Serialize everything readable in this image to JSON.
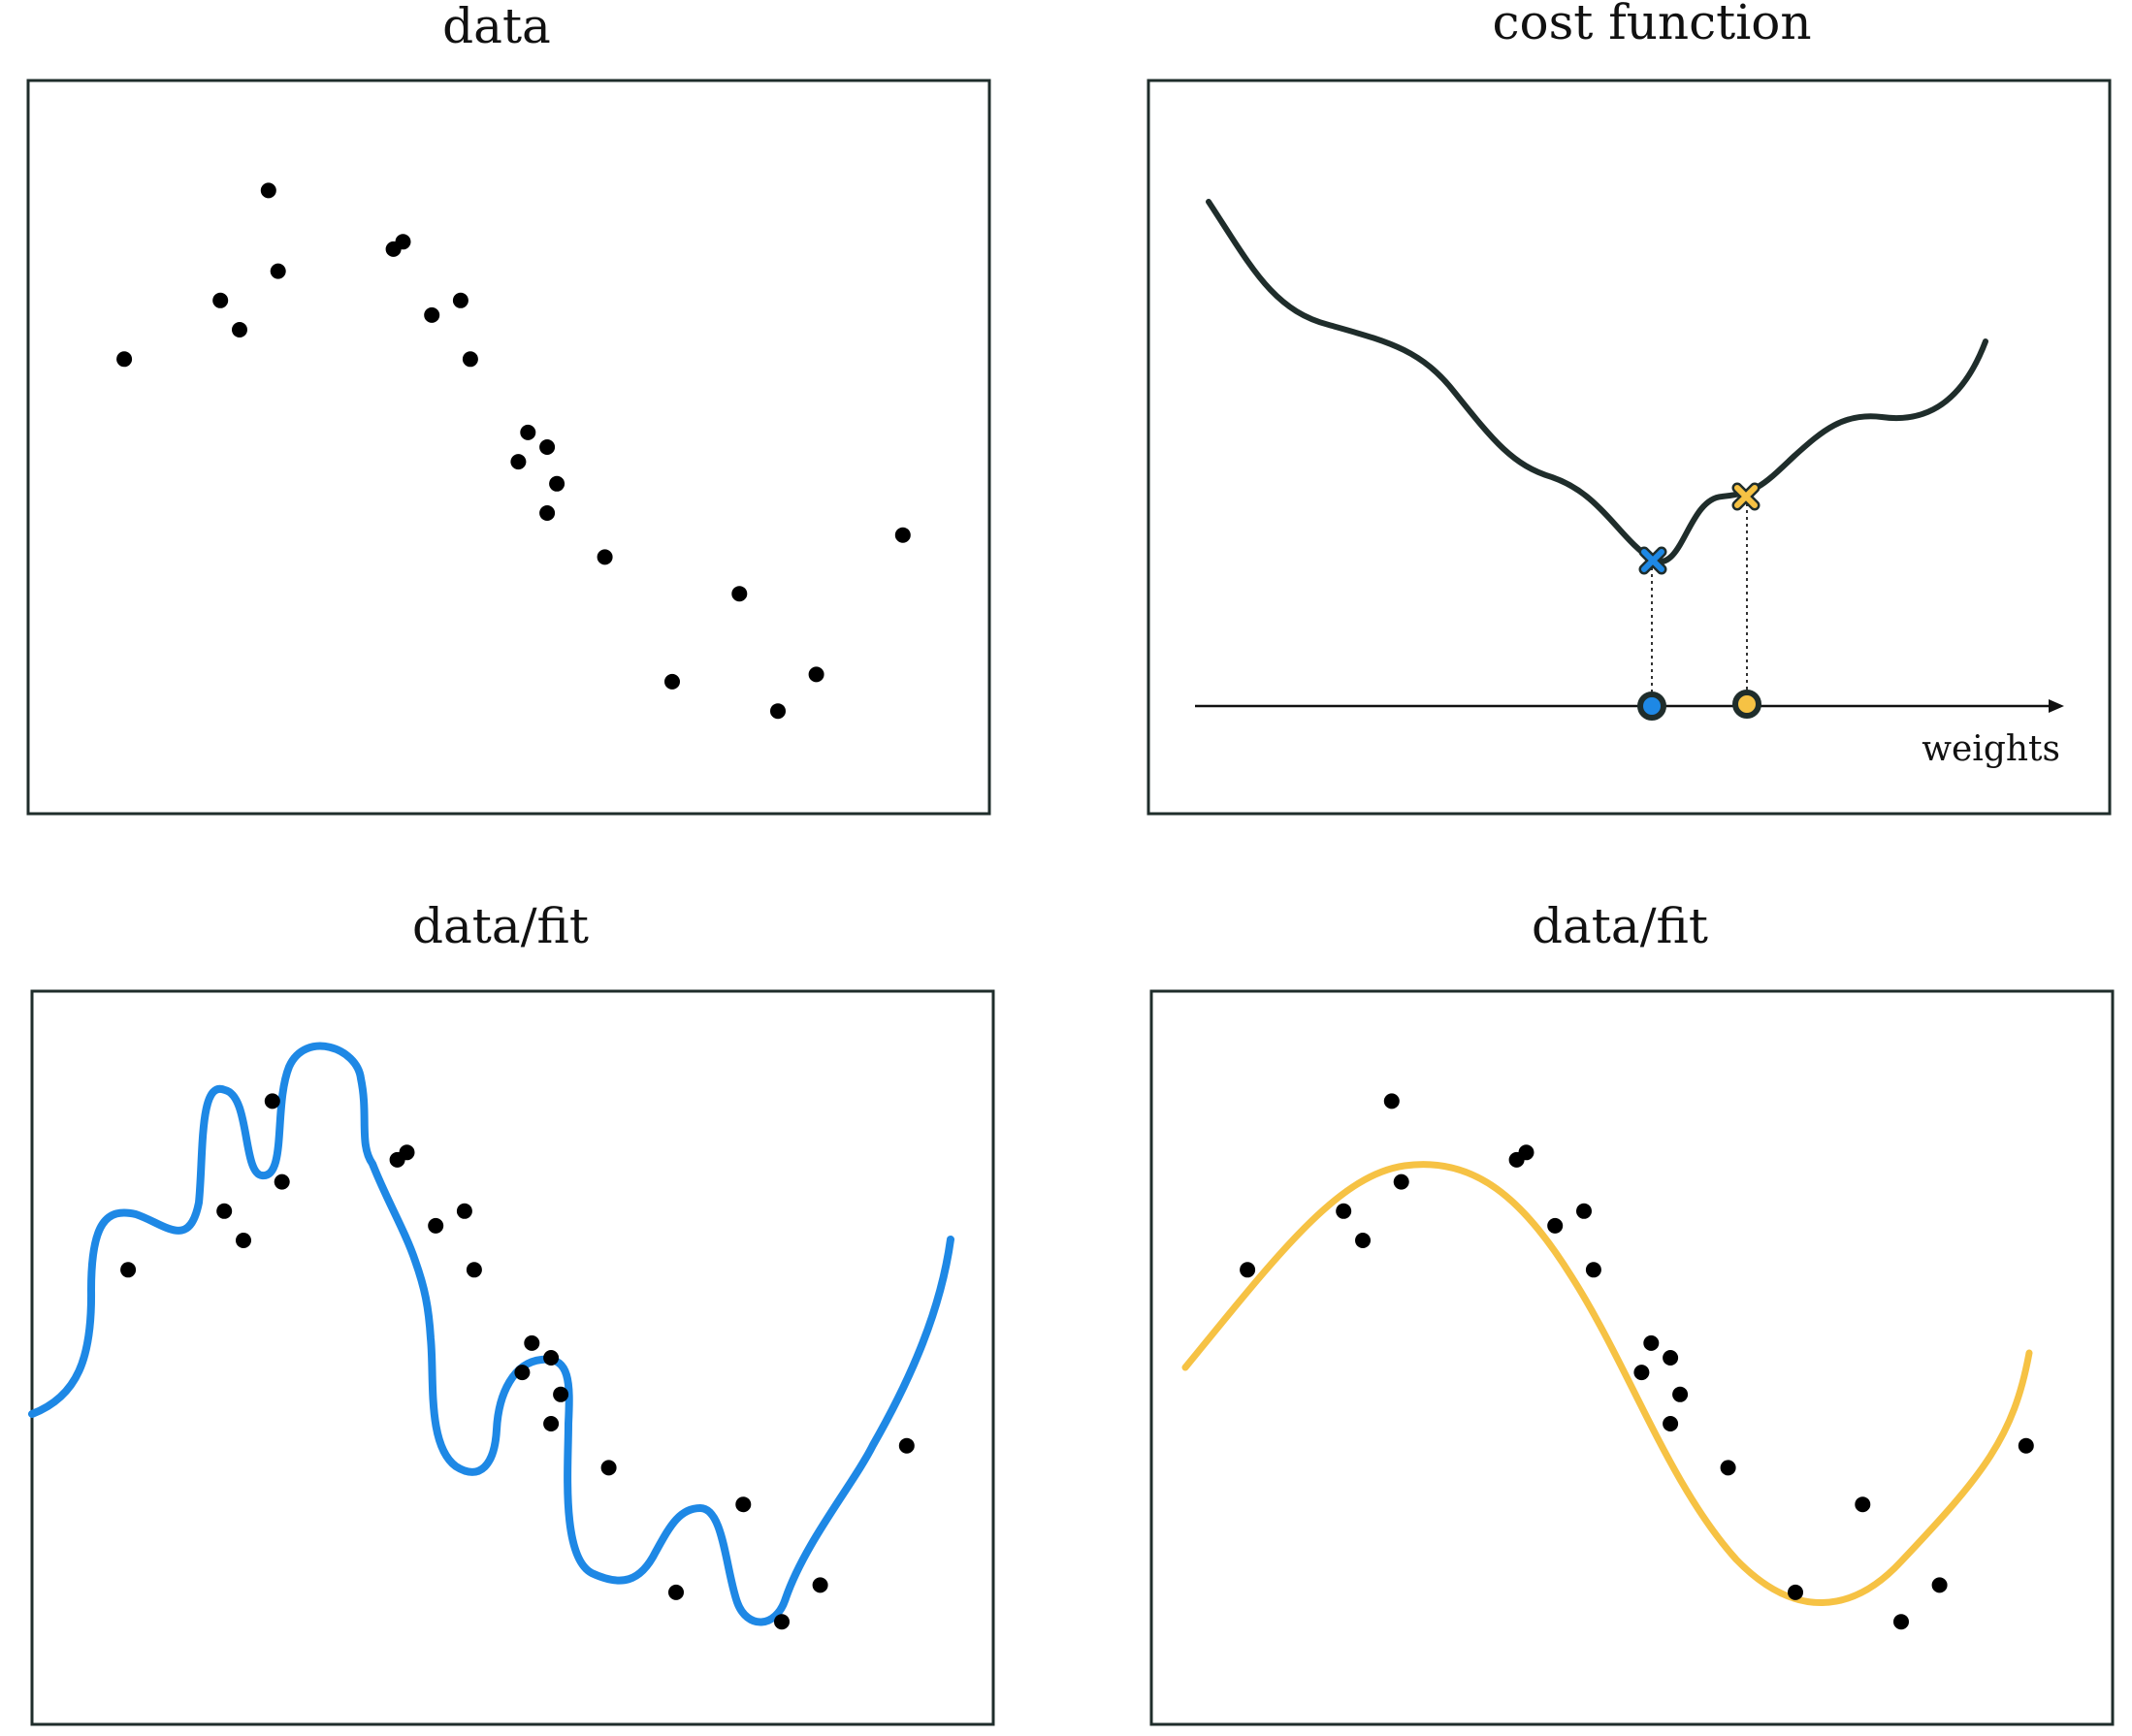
{
  "panels": {
    "data": {
      "title": "data"
    },
    "cost": {
      "title": "cost function",
      "axis_label": "weights",
      "markers": [
        {
          "name": "blue-minimum",
          "color": "#1e88e5"
        },
        {
          "name": "yellow-minimum",
          "color": "#f6c244"
        }
      ]
    },
    "fit_overfit": {
      "title": "data/fit",
      "curve_color": "#1e88e5"
    },
    "fit_smooth": {
      "title": "data/fit",
      "curve_color": "#f6c244"
    }
  },
  "colors": {
    "points": "#000000",
    "cost_curve": "#1f2d2b",
    "frame": "#1f2d2b",
    "blue": "#1e88e5",
    "yellow": "#f6c244"
  },
  "chart_data": [
    {
      "type": "scatter",
      "title": "data",
      "x": [
        0.1,
        0.2,
        0.22,
        0.25,
        0.26,
        0.38,
        0.39,
        0.42,
        0.45,
        0.46,
        0.51,
        0.52,
        0.54,
        0.54,
        0.55,
        0.6,
        0.67,
        0.74,
        0.78,
        0.82,
        0.91
      ],
      "y": [
        0.62,
        0.7,
        0.66,
        0.85,
        0.74,
        0.77,
        0.78,
        0.68,
        0.7,
        0.62,
        0.48,
        0.52,
        0.5,
        0.41,
        0.45,
        0.35,
        0.18,
        0.3,
        0.14,
        0.19,
        0.38
      ]
    },
    {
      "type": "line",
      "title": "cost function",
      "xlabel": "weights"
    },
    {
      "type": "scatter",
      "title": "data/fit"
    },
    {
      "type": "scatter",
      "title": "data/fit"
    }
  ]
}
